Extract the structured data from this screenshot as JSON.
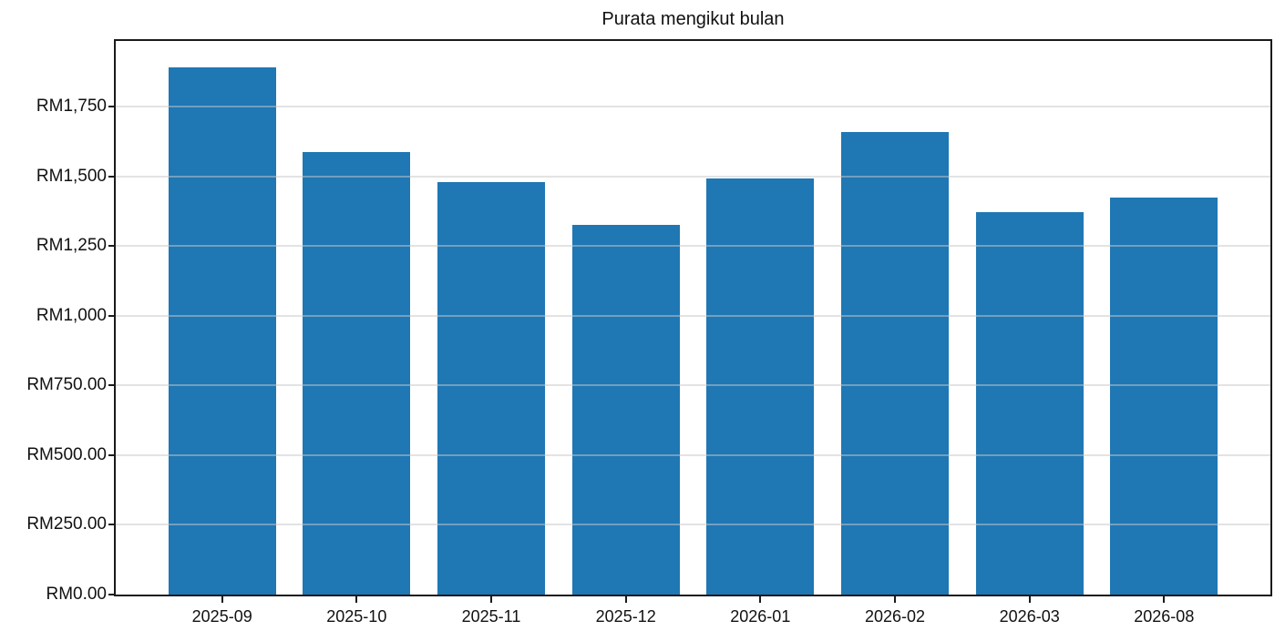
{
  "chart_data": {
    "type": "bar",
    "title": "Purata mengikut bulan",
    "xlabel": "",
    "ylabel": "",
    "currency_prefix": "RM",
    "categories": [
      "2025-09",
      "2025-10",
      "2025-11",
      "2025-12",
      "2026-01",
      "2026-02",
      "2026-03",
      "2026-08"
    ],
    "values": [
      1890,
      1588,
      1480,
      1326,
      1491,
      1659,
      1373,
      1424
    ],
    "y_ticks": [
      {
        "value": 0,
        "label": "RM0.00"
      },
      {
        "value": 250,
        "label": "RM250.00"
      },
      {
        "value": 500,
        "label": "RM500.00"
      },
      {
        "value": 750,
        "label": "RM750.00"
      },
      {
        "value": 1000,
        "label": "RM1,000"
      },
      {
        "value": 1250,
        "label": "RM1,250"
      },
      {
        "value": 1500,
        "label": "RM1,500"
      },
      {
        "value": 1750,
        "label": "RM1,750"
      }
    ],
    "ylim": [
      0,
      1985
    ],
    "grid": {
      "horizontal": true,
      "vertical": false,
      "drawn_above_bars": true
    },
    "legend": "none",
    "colors": {
      "bar": "#1f77b4",
      "axis": "#1a1a1a",
      "grid": "#c8c8c8",
      "text": "#111111",
      "background": "#ffffff"
    }
  }
}
